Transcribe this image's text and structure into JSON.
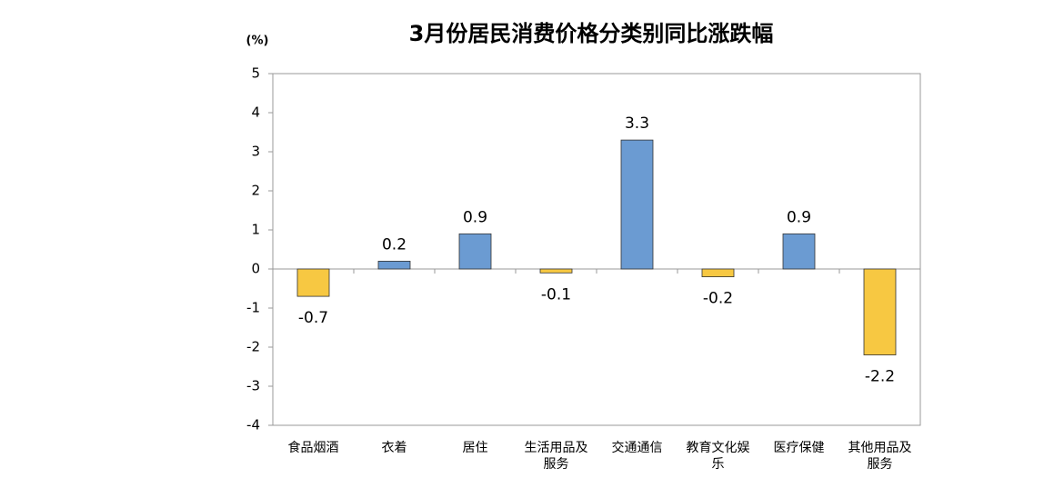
{
  "chart_data": {
    "type": "bar",
    "title": "3月份居民消费价格分类别同比涨跌幅",
    "y_label": "(%)",
    "categories": [
      "食品烟酒",
      "衣着",
      "居住",
      "生活用品及服务",
      "交通通信",
      "教育文化娱乐",
      "医疗保健",
      "其他用品及服务"
    ],
    "values": [
      -0.7,
      0.2,
      0.9,
      -0.1,
      3.3,
      -0.2,
      0.9,
      -2.2
    ],
    "colors": [
      "#f7c842",
      "#6b9bd2",
      "#6b9bd2",
      "#f7c842",
      "#6b9bd2",
      "#f7c842",
      "#6b9bd2",
      "#f7c842"
    ],
    "ylim": [
      -4,
      5
    ],
    "yticks": [
      -4,
      -3,
      -2,
      -1,
      0,
      1,
      2,
      3,
      4,
      5
    ]
  }
}
